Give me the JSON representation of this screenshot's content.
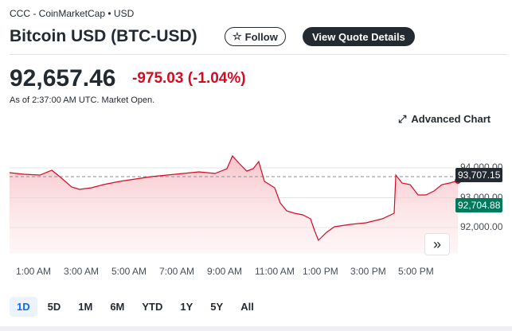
{
  "header": {
    "source": "CCC - CoinMarketCap • USD",
    "title": "Bitcoin USD (BTC-USD)",
    "follow_label": "Follow",
    "quote_label": "View Quote Details"
  },
  "quote": {
    "price": "92,657.46",
    "change": "-975.03 (-1.04%)",
    "as_of": "As of 2:37:00 AM UTC. Market Open."
  },
  "advanced_chart_label": "Advanced Chart",
  "colors": {
    "down": "#d60a22",
    "current": "#007a5c",
    "dark": "#232a31"
  },
  "chart_data": {
    "type": "area",
    "x_unit": "hours since midnight",
    "points": [
      [
        0,
        93840
      ],
      [
        0.6,
        93787
      ],
      [
        1.27,
        93760
      ],
      [
        1.77,
        93920
      ],
      [
        2.1,
        93707
      ],
      [
        2.6,
        93360
      ],
      [
        2.93,
        93280
      ],
      [
        3.43,
        93333
      ],
      [
        3.93,
        93440
      ],
      [
        4.6,
        93547
      ],
      [
        5.27,
        93627
      ],
      [
        5.93,
        93707
      ],
      [
        6.6,
        93760
      ],
      [
        7.27,
        93813
      ],
      [
        7.93,
        93867
      ],
      [
        8.6,
        93813
      ],
      [
        9.1,
        93973
      ],
      [
        9.33,
        94400
      ],
      [
        9.6,
        94160
      ],
      [
        9.93,
        93893
      ],
      [
        10.2,
        93973
      ],
      [
        10.43,
        94213
      ],
      [
        10.67,
        93547
      ],
      [
        11.1,
        93333
      ],
      [
        11.33,
        92827
      ],
      [
        11.6,
        92560
      ],
      [
        11.93,
        92480
      ],
      [
        12.27,
        92427
      ],
      [
        12.6,
        92293
      ],
      [
        12.77,
        91893
      ],
      [
        12.93,
        91573
      ],
      [
        13.27,
        91840
      ],
      [
        13.6,
        92027
      ],
      [
        14.27,
        92107
      ],
      [
        14.93,
        92160
      ],
      [
        15.6,
        92293
      ],
      [
        16.1,
        92480
      ],
      [
        16.17,
        93760
      ],
      [
        16.43,
        93493
      ],
      [
        16.77,
        93440
      ],
      [
        17.1,
        93093
      ],
      [
        17.43,
        93093
      ],
      [
        17.77,
        93227
      ],
      [
        18.1,
        93440
      ],
      [
        18.43,
        93493
      ],
      [
        18.77,
        93573
      ]
    ],
    "ylim": [
      91000,
      94700
    ],
    "y_ticks": [
      {
        "v": 94000,
        "label": "94,000.00"
      },
      {
        "v": 93000,
        "label": "93,000.00"
      },
      {
        "v": 92000,
        "label": "92,000.00"
      }
    ],
    "x_ticks": [
      {
        "h": 1,
        "label": "1:00 AM"
      },
      {
        "h": 3,
        "label": "3:00 AM"
      },
      {
        "h": 5,
        "label": "5:00 AM"
      },
      {
        "h": 7,
        "label": "7:00 AM"
      },
      {
        "h": 9,
        "label": "9:00 AM"
      },
      {
        "h": 11,
        "label": "11:00 AM"
      },
      {
        "h": 13,
        "label": "1:00 PM"
      },
      {
        "h": 15,
        "label": "3:00 PM"
      },
      {
        "h": 17,
        "label": "5:00 PM"
      }
    ],
    "previous_close": {
      "value": 93707.15,
      "label": "93,707.15"
    },
    "current": {
      "value": 92704.88,
      "label": "92,704.88"
    }
  },
  "ranges": [
    "1D",
    "5D",
    "1M",
    "6M",
    "YTD",
    "1Y",
    "5Y",
    "All"
  ],
  "active_range": "1D"
}
